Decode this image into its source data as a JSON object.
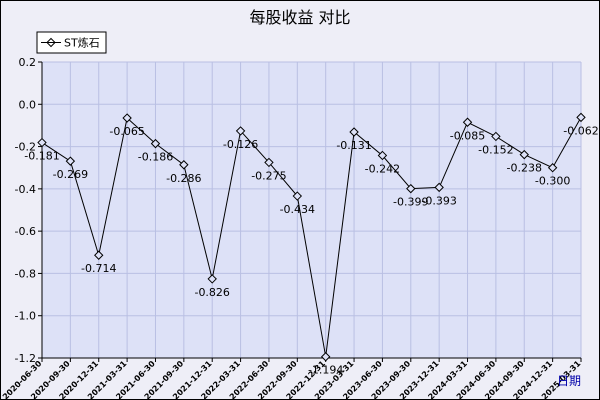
{
  "chart_data": {
    "type": "line",
    "title": "每股收益  对比",
    "xlabel": "日期",
    "ylabel": "",
    "ylim": [
      -1.2,
      0.2
    ],
    "yticks": [
      0.2,
      0.0,
      -0.2,
      -0.4,
      -0.6,
      -0.8,
      -1.0,
      -1.2
    ],
    "ytick_labels": [
      "0.2",
      "0.0",
      "-0.2",
      "-0.4",
      "-0.6",
      "-0.8",
      "-1.0",
      "-1.2"
    ],
    "grid": true,
    "legend_position": "top-left",
    "categories": [
      "2020-06-30",
      "2020-09-30",
      "2020-12-31",
      "2021-03-31",
      "2021-06-30",
      "2021-09-30",
      "2021-12-31",
      "2022-03-31",
      "2022-06-30",
      "2022-09-30",
      "2022-12-31",
      "2023-03-31",
      "2023-06-30",
      "2023-09-30",
      "2023-12-31",
      "2024-03-31",
      "2024-06-30",
      "2024-09-30",
      "2024-12-31",
      "2025-03-31"
    ],
    "series": [
      {
        "name": "ST炼石",
        "values": [
          -0.181,
          -0.269,
          -0.714,
          -0.065,
          -0.186,
          -0.286,
          -0.826,
          -0.126,
          -0.275,
          -0.434,
          -1.194,
          -0.131,
          -0.242,
          -0.399,
          -0.393,
          -0.085,
          -0.152,
          -0.238,
          -0.3,
          -0.062
        ],
        "labels": [
          "-0.181",
          "-0.269",
          "-0.714",
          "-0.065",
          "-0.186",
          "-0.286",
          "-0.826",
          "-0.126",
          "-0.275",
          "-0.434",
          "-1.194",
          "-0.131",
          "-0.242",
          "-0.399",
          "-0.393",
          "-0.085",
          "-0.152",
          "-0.238",
          "-0.300",
          "-0.062"
        ]
      }
    ]
  },
  "colors": {
    "background": "#eeeef7",
    "plot_background": "#dde1f7",
    "grid": "#b9bfe3",
    "line": "#000000",
    "x_axis_name": "#0000aa"
  }
}
